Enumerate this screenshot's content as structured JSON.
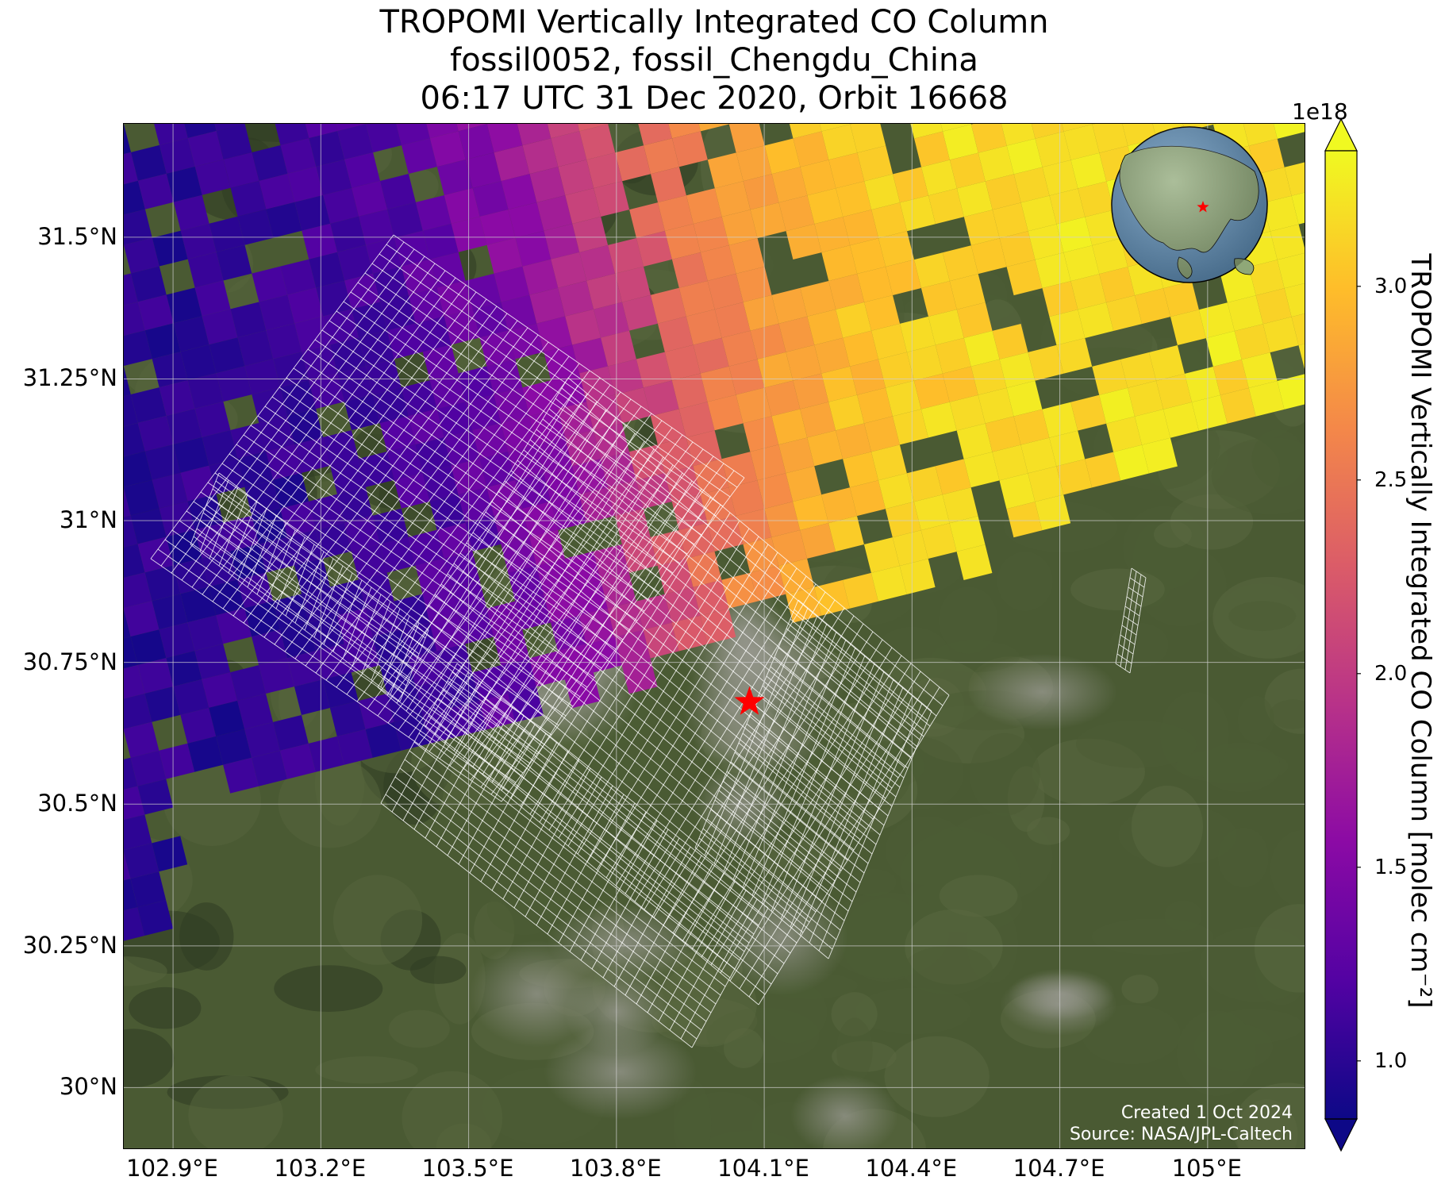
{
  "title": {
    "line1": "TROPOMI Vertically Integrated CO Column",
    "line2": "fossil0052, fossil_Chengdu_China",
    "line3": "06:17 UTC 31 Dec 2020, Orbit 16668"
  },
  "axes": {
    "lat_labels": [
      "31.5°N",
      "31.25°N",
      "31°N",
      "30.75°N",
      "30.5°N",
      "30.25°N",
      "30°N"
    ],
    "lon_labels": [
      "102.9°E",
      "103.2°E",
      "103.5°E",
      "103.8°E",
      "104.1°E",
      "104.4°E",
      "104.7°E",
      "105°E"
    ],
    "lat_range": [
      29.89,
      31.7
    ],
    "lon_range": [
      102.8,
      105.2
    ]
  },
  "site": {
    "marker": "red-star",
    "lat": 30.68,
    "lon": 104.07,
    "color": "#ff0000"
  },
  "colorbar": {
    "label": "TROPOMI Vertically Integrated CO Column [molec cm⁻²]",
    "exponent": "1e18",
    "ticks": [
      "1.0",
      "1.5",
      "2.0",
      "2.5",
      "3.0"
    ],
    "tick_values": [
      1.0,
      1.5,
      2.0,
      2.5,
      3.0
    ],
    "vmin": 0.85,
    "vmax": 3.35,
    "colormap": "plasma",
    "colors": [
      "#0d0887",
      "#5302a3",
      "#8b0aa5",
      "#b83289",
      "#db5c68",
      "#f48849",
      "#febd2a",
      "#f0f921"
    ]
  },
  "inset_globe": {
    "marker": "red-star",
    "ocean_color": "#5f8fb8",
    "land_color": "#8fa878"
  },
  "credits": {
    "created": "Created 1 Oct 2024",
    "source": "Source: NASA/JPL-Caltech"
  },
  "basemap": {
    "colors": [
      "#3f4f2c",
      "#4a5a33",
      "#5b6a44",
      "#8a8f82"
    ]
  }
}
